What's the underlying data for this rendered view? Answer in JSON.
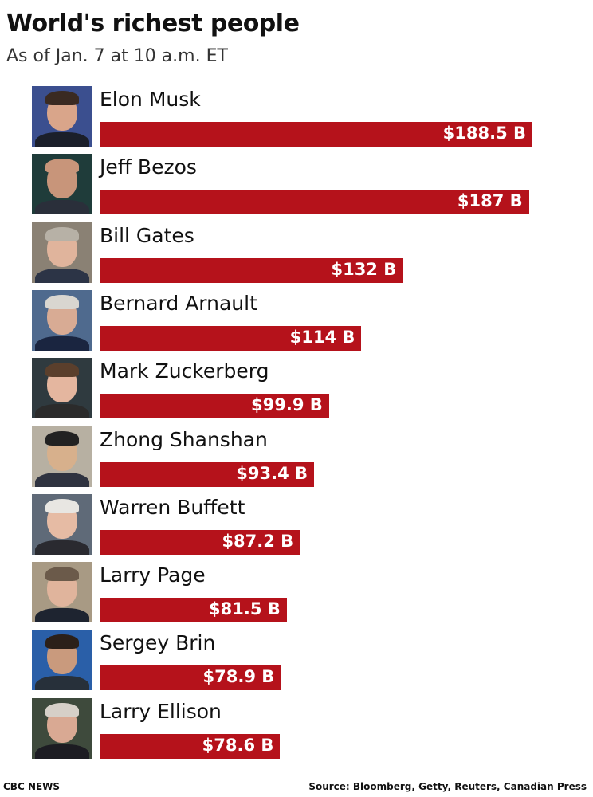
{
  "header": {
    "title": "World's richest people",
    "subtitle": "As of Jan. 7 at 10 a.m. ET"
  },
  "footer": {
    "credit": "CBC NEWS",
    "source": "Source: Bloomberg, Getty, Reuters, Canadian Press"
  },
  "colors": {
    "bar": "#b5121b",
    "bar_label": "#ffffff"
  },
  "chart_data": {
    "type": "bar",
    "orientation": "horizontal",
    "title": "World's richest people",
    "subtitle": "As of Jan. 7 at 10 a.m. ET",
    "unit": "B",
    "categories": [
      "Elon Musk",
      "Jeff Bezos",
      "Bill Gates",
      "Bernard Arnault",
      "Mark Zuckerberg",
      "Zhong Shanshan",
      "Warren Buffett",
      "Larry Page",
      "Sergey Brin",
      "Larry Ellison"
    ],
    "values": [
      188.5,
      187,
      132,
      114,
      99.9,
      93.4,
      87.2,
      81.5,
      78.9,
      78.6
    ],
    "value_labels": [
      "$188.5 B",
      "$187 B",
      "$132 B",
      "$114 B",
      "$99.9 B",
      "$93.4 B",
      "$87.2 B",
      "$81.5 B",
      "$78.9 B",
      "$78.6 B"
    ],
    "grid": false,
    "legend": "none"
  },
  "photos": [
    {
      "icon": "portrait-icon",
      "skin": "#d9a58a",
      "hair": "#3a2a22",
      "shirt": "#1b1f2a",
      "bg": "#3b4f8f"
    },
    {
      "icon": "portrait-icon",
      "skin": "#c8957a",
      "hair": "#c8957a",
      "shirt": "#2a2f3a",
      "bg": "#1f3c3a"
    },
    {
      "icon": "portrait-icon",
      "skin": "#e0b49c",
      "hair": "#b7b1a6",
      "shirt": "#2c3446",
      "bg": "#8a8174"
    },
    {
      "icon": "portrait-icon",
      "skin": "#d8ab94",
      "hair": "#d9d6d0",
      "shirt": "#1a2540",
      "bg": "#4f6a8e"
    },
    {
      "icon": "portrait-icon",
      "skin": "#e4b69f",
      "hair": "#5a3f2c",
      "shirt": "#2b2b2b",
      "bg": "#2f3a3f"
    },
    {
      "icon": "portrait-icon",
      "skin": "#d7b08c",
      "hair": "#222222",
      "shirt": "#2f3340",
      "bg": "#b7b0a2"
    },
    {
      "icon": "portrait-icon",
      "skin": "#e6bba4",
      "hair": "#e8e6e2",
      "shirt": "#2a2a30",
      "bg": "#5f6a78"
    },
    {
      "icon": "portrait-icon",
      "skin": "#e0b49c",
      "hair": "#6b5a4a",
      "shirt": "#1e2430",
      "bg": "#a89a84"
    },
    {
      "icon": "portrait-icon",
      "skin": "#c99a7d",
      "hair": "#2b2019",
      "shirt": "#27303a",
      "bg": "#2a5fa8"
    },
    {
      "icon": "portrait-icon",
      "skin": "#d9a993",
      "hair": "#d6d0c8",
      "shirt": "#1c1c22",
      "bg": "#3e4a3c"
    }
  ]
}
